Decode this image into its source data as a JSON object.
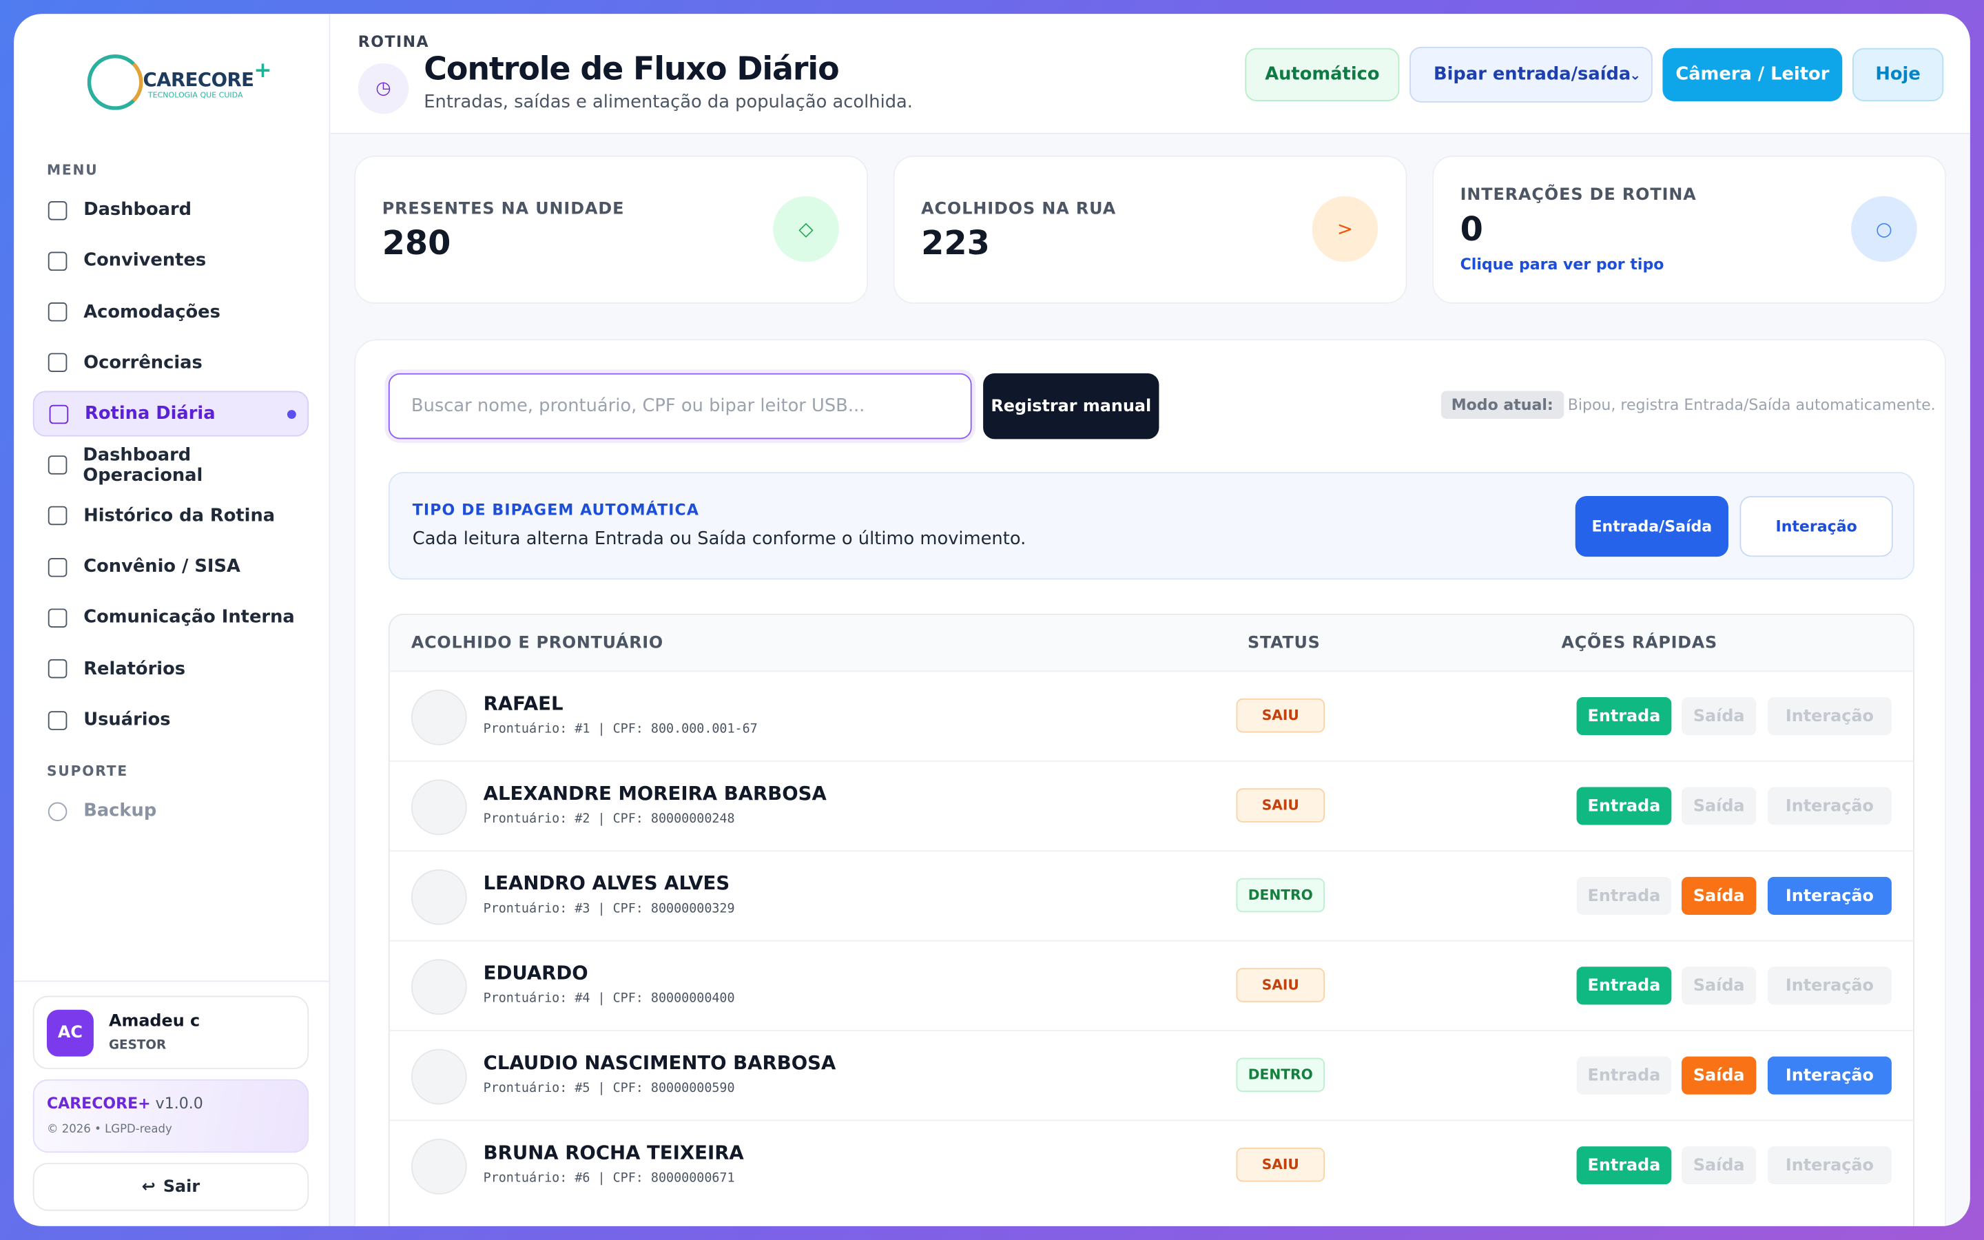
{
  "sidebar": {
    "logo": {
      "brand": "CARECORE",
      "plus": "+",
      "tagline": "TECNOLOGIA QUE CUIDA"
    },
    "menu_label": "MENU",
    "menu": [
      "Dashboard",
      "Conviventes",
      "Acomodações",
      "Ocorrências",
      "Rotina Diária",
      "Dashboard Operacional",
      "Histórico da Rotina",
      "Convênio / SISA",
      "Comunicação Interna",
      "Relatórios",
      "Usuários"
    ],
    "active": "Rotina Diária",
    "support_label": "SUPORTE",
    "support": [
      "Backup"
    ],
    "user": {
      "initials": "AC",
      "name": "Amadeu c",
      "role": "GESTOR"
    },
    "version": {
      "brand": "CARECORE+",
      "version": "v1.0.0",
      "note": "© 2026 • LGPD-ready"
    },
    "logout": "Sair"
  },
  "header": {
    "eyebrow": "ROTINA",
    "icon": "◷",
    "title": "Controle de Fluxo Diário",
    "subtitle": "Entradas, saídas e alimentação da população acolhida.",
    "mode_button": "Automático",
    "select": "Bipar entrada/saída",
    "camera_button": "Câmera / Leitor",
    "today_button": "Hoje"
  },
  "stats": [
    {
      "label": "PRESENTES NA UNIDADE",
      "value": "280",
      "icon": "◇"
    },
    {
      "label": "ACOLHIDOS NA RUA",
      "value": "223",
      "icon": ">"
    },
    {
      "label": "INTERAÇÕES DE ROTINA",
      "value": "0",
      "link": "Clique para ver por tipo",
      "icon": "○"
    }
  ],
  "search": {
    "placeholder": "Buscar nome, prontuário, CPF ou bipar leitor USB...",
    "button": "Registrar manual",
    "mode_label": "Modo atual:",
    "mode_text": "Bipou, registra Entrada/Saída automaticamente."
  },
  "auto_type": {
    "title": "TIPO DE BIPAGEM AUTOMÁTICA",
    "description": "Cada leitura alterna Entrada ou Saída conforme o último movimento.",
    "buttons": [
      "Entrada/Saída",
      "Interação"
    ]
  },
  "table": {
    "headers": [
      "ACOLHIDO E PRONTUÁRIO",
      "STATUS",
      "AÇÕES RÁPIDAS"
    ],
    "actions": [
      "Entrada",
      "Saída",
      "Interação"
    ],
    "rows": [
      {
        "name": "RAFAEL",
        "meta": "Prontuário: #1 | CPF: 800.000.001-67",
        "status": "SAIU"
      },
      {
        "name": "ALEXANDRE MOREIRA BARBOSA",
        "meta": "Prontuário: #2 | CPF: 80000000248",
        "status": "SAIU"
      },
      {
        "name": "LEANDRO ALVES ALVES",
        "meta": "Prontuário: #3 | CPF: 80000000329",
        "status": "DENTRO"
      },
      {
        "name": "EDUARDO",
        "meta": "Prontuário: #4 | CPF: 80000000400",
        "status": "SAIU"
      },
      {
        "name": "CLAUDIO NASCIMENTO BARBOSA",
        "meta": "Prontuário: #5 | CPF: 80000000590",
        "status": "DENTRO"
      },
      {
        "name": "BRUNA ROCHA TEIXEIRA",
        "meta": "Prontuário: #6 | CPF: 80000000671",
        "status": "SAIU"
      }
    ]
  }
}
